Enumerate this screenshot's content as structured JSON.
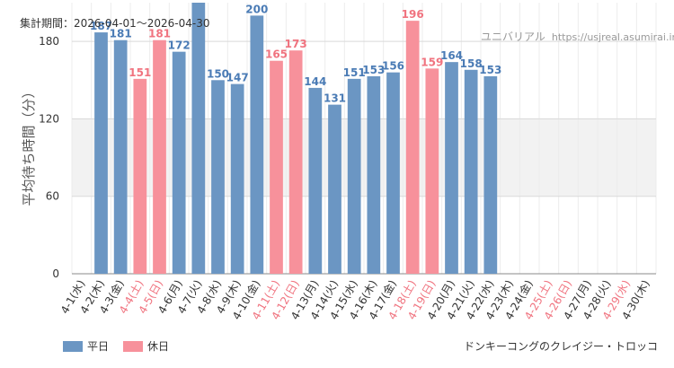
{
  "header": {
    "period_label": "集計期間：",
    "period_value": "2026-04-01～2026-04-30",
    "site_name": "ユニバリアル",
    "site_url": "https://usjreal.asumirai.info"
  },
  "legend": {
    "weekday_label": "平日",
    "holiday_label": "休日"
  },
  "attraction_name": "ドンキーコングのクレイジー・トロッコ",
  "chart_data": {
    "type": "bar",
    "title": "",
    "xlabel": "",
    "ylabel": "平均待ち時間（分）",
    "ylim": [
      0,
      210
    ],
    "yticks": [
      0,
      60,
      120,
      180
    ],
    "shaded_band": [
      60,
      120
    ],
    "colors": {
      "weekday": "#6b96c3",
      "holiday": "#f7919b",
      "weekday_text": "#4a7bb5",
      "holiday_text": "#f0737f"
    },
    "categories": [
      "4-1(水)",
      "4-2(木)",
      "4-3(金)",
      "4-4(土)",
      "4-5(日)",
      "4-6(月)",
      "4-7(火)",
      "4-8(水)",
      "4-9(木)",
      "4-10(金)",
      "4-11(土)",
      "4-12(日)",
      "4-13(月)",
      "4-14(火)",
      "4-15(水)",
      "4-16(木)",
      "4-17(金)",
      "4-18(土)",
      "4-19(日)",
      "4-20(月)",
      "4-21(火)",
      "4-22(水)",
      "4-23(木)",
      "4-24(金)",
      "4-25(土)",
      "4-26(日)",
      "4-27(月)",
      "4-28(火)",
      "4-29(水)",
      "4-30(木)"
    ],
    "values": [
      null,
      187,
      181,
      151,
      181,
      172,
      212,
      150,
      147,
      200,
      165,
      173,
      144,
      131,
      151,
      153,
      156,
      196,
      159,
      164,
      158,
      153,
      null,
      null,
      null,
      null,
      null,
      null,
      null,
      null
    ],
    "value_labels": [
      "",
      "187",
      "181",
      "151",
      "181",
      "172",
      "",
      "150",
      "147",
      "200",
      "165",
      "173",
      "144",
      "131",
      "151",
      "153",
      "156",
      "196",
      "159",
      "164",
      "158",
      "153",
      "",
      "",
      "",
      "",
      "",
      "",
      "",
      ""
    ],
    "holiday": [
      false,
      false,
      false,
      true,
      true,
      false,
      false,
      false,
      false,
      false,
      true,
      true,
      false,
      false,
      false,
      false,
      false,
      true,
      true,
      false,
      false,
      false,
      false,
      false,
      true,
      true,
      false,
      false,
      true,
      false
    ]
  }
}
